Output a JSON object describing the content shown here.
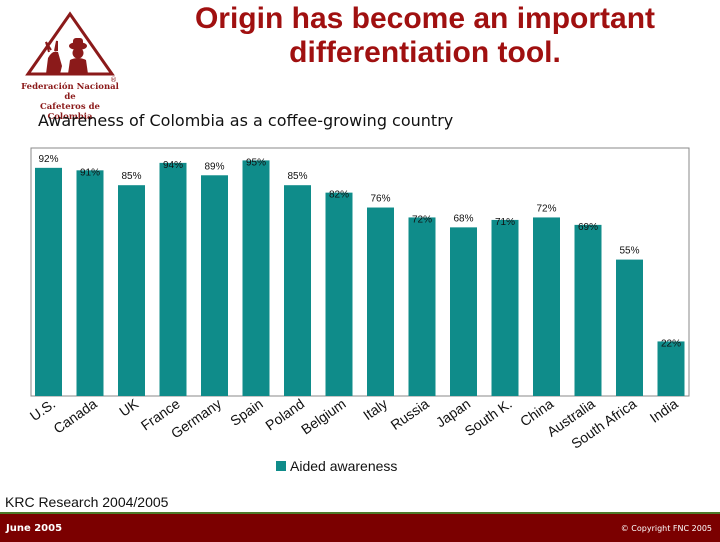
{
  "logo": {
    "line1": "Federación Nacional de",
    "line2": "Cafeteros de Colombia",
    "registered": "®",
    "icon": "coffee-grower-with-mule-logo"
  },
  "title": {
    "line1": "Origin has become an important",
    "line2": "differentiation tool."
  },
  "subtitle": "Awareness of Colombia as a coffee-growing country",
  "chart_data": {
    "type": "bar",
    "title": "Awareness of Colombia as a coffee-growing country",
    "categories": [
      "U.S.",
      "Canada",
      "UK",
      "France",
      "Germany",
      "Spain",
      "Poland",
      "Belgium",
      "Italy",
      "Russia",
      "Japan",
      "South K.",
      "China",
      "Australia",
      "South Africa",
      "India"
    ],
    "series": [
      {
        "name": "Aided awareness",
        "values": [
          92,
          91,
          85,
          94,
          89,
          95,
          85,
          82,
          76,
          72,
          68,
          71,
          72,
          69,
          55,
          22
        ],
        "labels": [
          "92%",
          "91%",
          "85%",
          "94%",
          "89%",
          "95%",
          "85%",
          "82%",
          "76%",
          "72%",
          "68%",
          "71%",
          "72%",
          "69%",
          "55%",
          "22%"
        ]
      }
    ],
    "ylim": [
      0,
      100
    ],
    "grid": false,
    "legend": "bottom",
    "colors": {
      "bar": "#0f8c8a",
      "frame": "#888888",
      "label": "#111111"
    }
  },
  "source": "KRC Research 2004/2005",
  "footer": {
    "date": "June 2005",
    "copyright": "© Copyright FNC 2005",
    "background": "#7b0000",
    "accent": "#4d7a2a"
  }
}
